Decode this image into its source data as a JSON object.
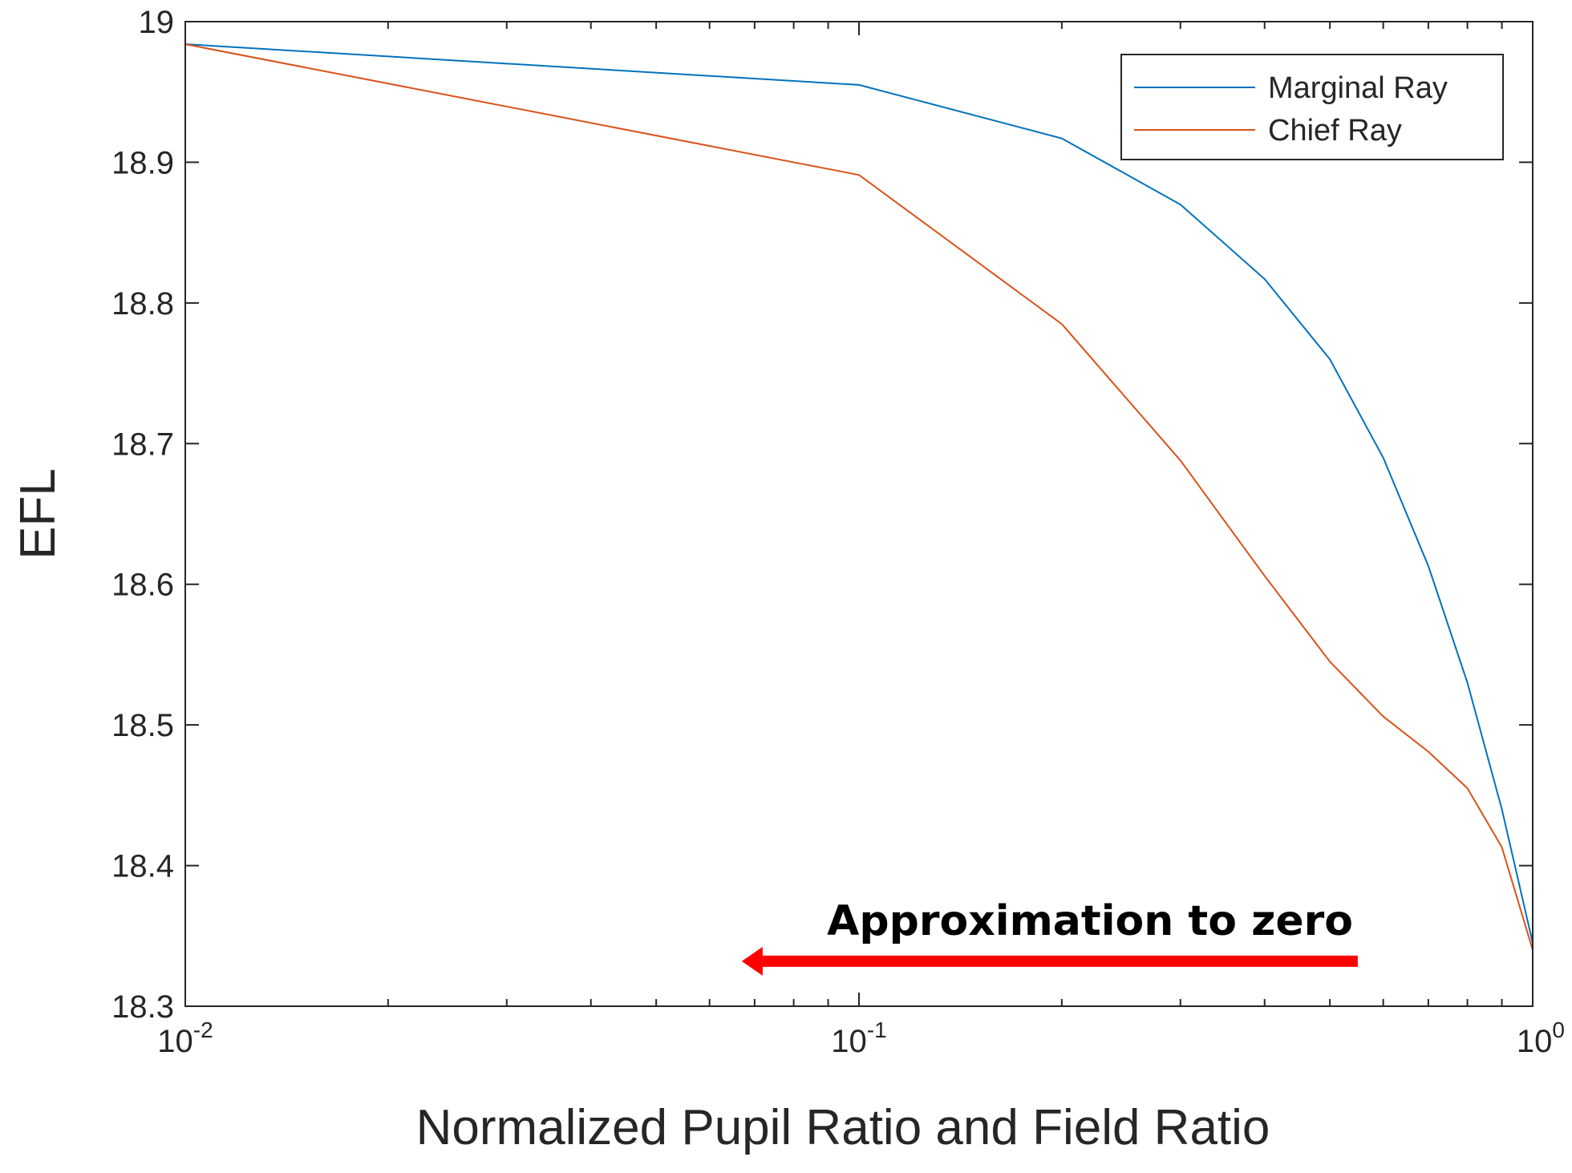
{
  "chart_data": {
    "type": "line",
    "title": "",
    "xlabel": "Normalized Pupil Ratio and Field Ratio",
    "ylabel": "EFL",
    "xscale": "log",
    "xlim": [
      0.01,
      1
    ],
    "ylim": [
      18.3,
      19
    ],
    "x_ticks": [
      {
        "value": 0.01,
        "base": "10",
        "exp": "-2"
      },
      {
        "value": 0.1,
        "base": "10",
        "exp": "-1"
      },
      {
        "value": 1,
        "base": "10",
        "exp": "0"
      }
    ],
    "y_ticks": [
      {
        "value": 18.3,
        "label": "18.3"
      },
      {
        "value": 18.4,
        "label": "18.4"
      },
      {
        "value": 18.5,
        "label": "18.5"
      },
      {
        "value": 18.6,
        "label": "18.6"
      },
      {
        "value": 18.7,
        "label": "18.7"
      },
      {
        "value": 18.8,
        "label": "18.8"
      },
      {
        "value": 18.9,
        "label": "18.9"
      },
      {
        "value": 19,
        "label": "19"
      }
    ],
    "grid": false,
    "legend_position": "top-right",
    "series": [
      {
        "name": "Marginal Ray",
        "color": "#0072BD",
        "x": [
          0.01,
          0.1,
          0.2,
          0.3,
          0.4,
          0.5,
          0.6,
          0.7,
          0.8,
          0.9,
          1.0
        ],
        "values": [
          18.984,
          18.955,
          18.917,
          18.87,
          18.817,
          18.76,
          18.69,
          18.613,
          18.53,
          18.44,
          18.345
        ]
      },
      {
        "name": "Chief Ray",
        "color": "#D95319",
        "x": [
          0.01,
          0.1,
          0.2,
          0.3,
          0.4,
          0.5,
          0.6,
          0.7,
          0.8,
          0.9,
          1.0
        ],
        "values": [
          18.984,
          18.891,
          18.785,
          18.688,
          18.606,
          18.545,
          18.506,
          18.481,
          18.455,
          18.413,
          18.34
        ]
      }
    ],
    "annotation": {
      "text": "Approximation to zero",
      "arrow_color": "#FF0000",
      "arrow_from_x": 0.55,
      "arrow_to_x": 0.067,
      "arrow_y": 18.332
    }
  }
}
